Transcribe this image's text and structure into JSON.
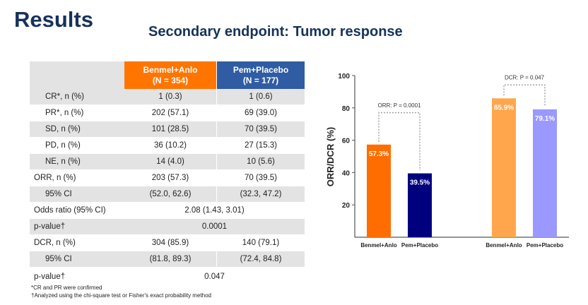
{
  "title": "Results",
  "subtitle": "Secondary endpoint: Tumor response",
  "table": {
    "headers": [
      {
        "l1": "Benmel+Anlo",
        "l2": "(N  = 354)"
      },
      {
        "l1": "Pem+Placebo",
        "l2": "(N = 177)"
      }
    ],
    "rows": [
      {
        "label": "CR*, n (%)",
        "a": "1 (0.3)",
        "b": "1 (0.6)"
      },
      {
        "label": "PR*, n (%)",
        "a": "202 (57.1)",
        "b": "69 (39.0)"
      },
      {
        "label": "SD, n (%)",
        "a": "101 (28.5)",
        "b": "70 (39.5)"
      },
      {
        "label": "PD, n (%)",
        "a": "36 (10.2)",
        "b": "27 (15.3)"
      },
      {
        "label": "NE, n (%)",
        "a": "14 (4.0)",
        "b": "10 (5.6)"
      },
      {
        "label": "ORR, n (%)",
        "a": "203 (57.3)",
        "b": "70 (39.5)"
      },
      {
        "label": "95% CI",
        "a": "(52.0, 62.6)",
        "b": "(32.3, 47.2)"
      },
      {
        "label": "Odds ratio (95% CI)",
        "span": "2.08 (1.43, 3.01)"
      },
      {
        "label": "p-value†",
        "span": "0.0001"
      },
      {
        "label": "DCR, n (%)",
        "a": "304 (85.9)",
        "b": "140 (79.1)"
      },
      {
        "label": "95% CI",
        "a": "(81.8, 89.3)",
        "b": "(72.4, 84.8)"
      },
      {
        "label": "p-value†",
        "span": "0.047"
      }
    ]
  },
  "footnotes": [
    "*CR and PR were confirmed",
    "†Analyzed using the chi-square test or Fisher's exact probability method"
  ],
  "chart_data": {
    "type": "bar",
    "ylabel": "ORR/DCR (%)",
    "ylim": [
      0,
      100
    ],
    "yticks": [
      "20",
      "40",
      "60",
      "80",
      "100"
    ],
    "groups": [
      {
        "name": "ORR",
        "annotation": "ORR: P = 0.0001",
        "bars": [
          {
            "label": "Benmel+Anlo",
            "value": 57.3,
            "text": "57.3%",
            "color": "#ff6d00"
          },
          {
            "label": "Pem+Placebo",
            "value": 39.5,
            "text": "39.5%",
            "color": "#00007f"
          }
        ]
      },
      {
        "name": "DCR",
        "annotation": "DCR: P = 0.047",
        "bars": [
          {
            "label": "Benmel+Anlo",
            "value": 85.9,
            "text": "85.9%",
            "color": "#ffa64d"
          },
          {
            "label": "Pem+Placebo",
            "value": 79.1,
            "text": "79.1%",
            "color": "#9999ff"
          }
        ]
      }
    ]
  }
}
